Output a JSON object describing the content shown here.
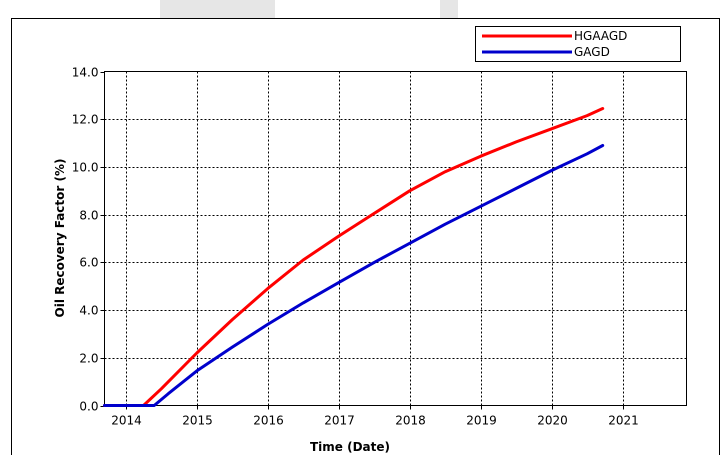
{
  "chart_data": {
    "type": "line",
    "title": "",
    "xlabel": "Time (Date)",
    "ylabel": "Oil Recovery Factor (%)",
    "xlim": [
      2013.7,
      2021.9
    ],
    "ylim": [
      0,
      14
    ],
    "grid": true,
    "legend_position": "top-right",
    "x_ticks": [
      {
        "value": 2014,
        "label": "2014"
      },
      {
        "value": 2015,
        "label": "2015"
      },
      {
        "value": 2016,
        "label": "2016"
      },
      {
        "value": 2017,
        "label": "2017"
      },
      {
        "value": 2018,
        "label": "2018"
      },
      {
        "value": 2019,
        "label": "2019"
      },
      {
        "value": 2020,
        "label": "2020"
      },
      {
        "value": 2021,
        "label": "2021"
      }
    ],
    "y_ticks": [
      {
        "value": 0,
        "label": "0.0"
      },
      {
        "value": 2,
        "label": "2.0"
      },
      {
        "value": 4,
        "label": "4.0"
      },
      {
        "value": 6,
        "label": "6.0"
      },
      {
        "value": 8,
        "label": "8.0"
      },
      {
        "value": 10,
        "label": "10.0"
      },
      {
        "value": 12,
        "label": "12.0"
      },
      {
        "value": 14,
        "label": "14.0"
      }
    ],
    "series": [
      {
        "name": "HGAAGD",
        "color": "#ff0000",
        "x": [
          2013.7,
          2014.25,
          2014.5,
          2015.0,
          2015.5,
          2016.0,
          2016.5,
          2017.0,
          2017.5,
          2018.0,
          2018.5,
          2019.0,
          2019.5,
          2020.0,
          2020.5,
          2020.72
        ],
        "y": [
          0,
          0,
          0.7,
          2.2,
          3.6,
          4.9,
          6.1,
          7.1,
          8.05,
          9.0,
          9.8,
          10.45,
          11.05,
          11.6,
          12.15,
          12.45
        ]
      },
      {
        "name": "GAGD",
        "color": "#0000cc",
        "x": [
          2013.7,
          2014.4,
          2014.6,
          2015.0,
          2015.5,
          2016.0,
          2016.5,
          2017.0,
          2017.5,
          2018.0,
          2018.5,
          2019.0,
          2019.5,
          2020.0,
          2020.5,
          2020.72
        ],
        "y": [
          0,
          0,
          0.5,
          1.45,
          2.45,
          3.4,
          4.3,
          5.15,
          6.0,
          6.8,
          7.6,
          8.35,
          9.1,
          9.85,
          10.55,
          10.9
        ]
      }
    ]
  }
}
